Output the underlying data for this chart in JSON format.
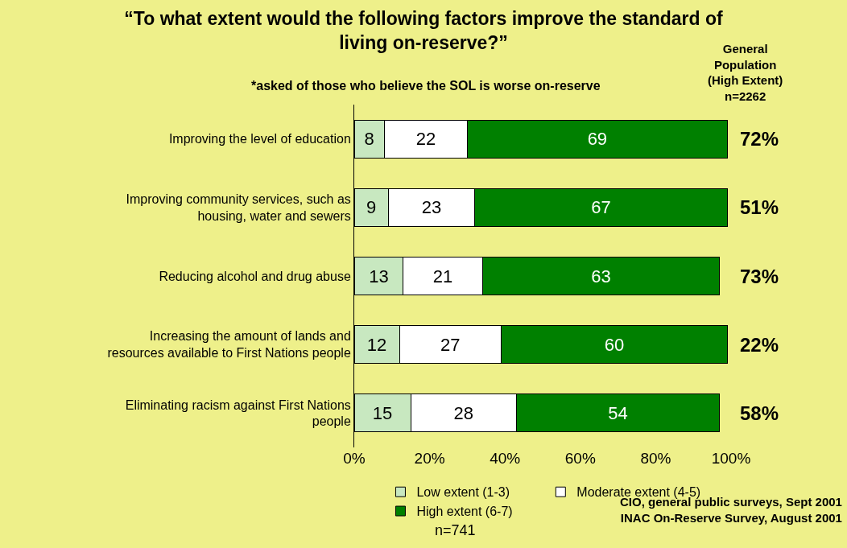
{
  "chart_data": {
    "type": "bar",
    "orientation": "horizontal",
    "stacked": true,
    "title": "“To what extent would the following factors improve the standard of\nliving on-reserve?”",
    "subtitle": "*asked of those who believe the SOL is worse on-reserve",
    "categories": [
      "Improving the level of education",
      "Improving community services, such as\nhousing, water and sewers",
      "Reducing alcohol and drug abuse",
      "Increasing the amount of lands and\nresources available to First Nations people",
      "Eliminating racism against First Nations\npeople"
    ],
    "series": [
      {
        "name": "Low extent (1-3)",
        "color": "#c8e8c0",
        "values": [
          8,
          9,
          13,
          12,
          15
        ]
      },
      {
        "name": "Moderate extent (4-5)",
        "color": "#ffffff",
        "values": [
          22,
          23,
          21,
          27,
          28
        ]
      },
      {
        "name": "High extent (6-7)",
        "color": "#008000",
        "values": [
          69,
          67,
          63,
          60,
          54
        ]
      }
    ],
    "xlim": [
      0,
      100
    ],
    "xticks": [
      {
        "value": 0,
        "label": "0%"
      },
      {
        "value": 20,
        "label": "20%"
      },
      {
        "value": 40,
        "label": "40%"
      },
      {
        "value": 60,
        "label": "60%"
      },
      {
        "value": 80,
        "label": "80%"
      },
      {
        "value": 100,
        "label": "100%"
      }
    ],
    "data_labels": true,
    "legend": "bottom",
    "grid": false,
    "annotations": [
      "General\nPopulation\n(High Extent)\nn=2262",
      "72%",
      "51%",
      "73%",
      "22%",
      "58%",
      "n=741",
      "CIO, general public surveys, Sept 2001\nINAC On-Reserve Survey, August 2001"
    ]
  }
}
